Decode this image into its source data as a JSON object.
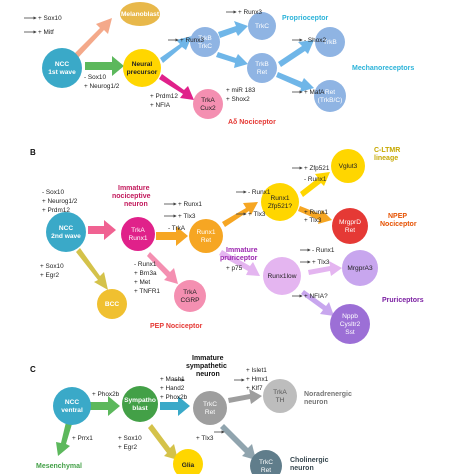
{
  "panels": {
    "b": "B",
    "c": "C"
  },
  "colors": {
    "ncc": "#3aa9c8",
    "green": "#5cb85c",
    "pink": "#f06292",
    "magenta": "#e0218a",
    "orange": "#f6a623",
    "yellow": "#ffd600",
    "red": "#e53935",
    "purple": "#9c6fd6",
    "blue_light": "#8fb4e3",
    "gray": "#cccccc",
    "cyan": "#2bb3d9",
    "sky": "#6fb6e8",
    "tan": "#c8a06a"
  },
  "panelA": {
    "nodes": {
      "ncc": [
        "NCC",
        "1st wave"
      ],
      "melanoblast": [
        "Melanoblast"
      ],
      "neural": [
        "Neural",
        "precursor"
      ],
      "trkb_trkc": [
        "TrkB",
        "TrkC"
      ],
      "trkc": [
        "TrkC"
      ],
      "trkb_ret": [
        "TrkB",
        "Ret"
      ],
      "trka_cux2": [
        "TrkA",
        "Cux2"
      ],
      "trkb": [
        "TrkB"
      ],
      "ret_trkbc": [
        "Ret",
        "(TrkB/C)"
      ]
    },
    "labels": {
      "sox10": "+ Sox10",
      "mitf": "+ Mitf",
      "minus_sox10": "- Sox10",
      "neurog": "+ Neurog1/2",
      "runx3_a": "+ Runx3",
      "runx3_b": "+ Runx3",
      "mir183": "+ miR 183",
      "shox2_a": "+ Shox2",
      "shox2_b": "- Shox2",
      "mafa": "+ MafA",
      "prdm12": "+ Prdm12",
      "nfia": "+ NFIA"
    },
    "captions": {
      "proprioceptor": "Proprioceptor",
      "mechanoreceptors": "Mechanoreceptors",
      "ad_nociceptor": "Aδ Nociceptor"
    }
  },
  "panelB": {
    "nodes": {
      "ncc2": [
        "NCC",
        "2nd wave"
      ],
      "trka_runx1": [
        "TrkA",
        "Runx1"
      ],
      "runx1_ret": [
        "Runx1",
        "Ret"
      ],
      "runx1_zfp": [
        "Runx1",
        "Zfp521?"
      ],
      "vglut3": [
        "Vglut3"
      ],
      "mrgprd": [
        "MrgprD",
        "Ret"
      ],
      "runx1low": [
        "Runx1low"
      ],
      "mrgpra3": [
        "MrgprA3"
      ],
      "nppb": [
        "Nppb",
        "Cysltr2",
        "Sst"
      ],
      "trka_cgrp": [
        "TrkA",
        "CGRP"
      ],
      "bcc": [
        "BCC"
      ]
    },
    "labels": {
      "sox10": "- Sox10",
      "neurog": "+ Neurog1/2",
      "prdm12": "+ Prdm12",
      "sox10p": "+ Sox10",
      "egr2": "+ Egr2",
      "runx1": "+ Runx1",
      "tlx3": "+ Tlx3",
      "trka": "- TrkA",
      "runx1b": "- Runx1",
      "brn3a": "+ Brn3a",
      "met": "+ Met",
      "tnfr1": "+ TNFR1",
      "p75": "+ p75",
      "runx1c": "- Runx1",
      "tlx3b": "+ Tlx3",
      "zfp521": "+ Zfp521",
      "runx1d": "- Runx1",
      "runx1e": "+ Runx1",
      "tlx3c": "+ Tlx3",
      "runx1f": "- Runx1",
      "tlx3d": "+ Tlx3",
      "nfia": "+ NFIA?"
    },
    "captions": {
      "immature_noci": [
        "Immature",
        "nociceptive",
        "neuron"
      ],
      "cltmr": [
        "C-LTMR",
        "lineage"
      ],
      "npep": [
        "NPEP",
        "Nociceptor"
      ],
      "immature_prur": [
        "Immature",
        "pruriceptor"
      ],
      "pruriceptors": "Pruriceptors",
      "pep": "PEP Nociceptor"
    }
  },
  "panelC": {
    "nodes": {
      "ncc_ventral": [
        "NCC",
        "ventral"
      ],
      "sympathoblast": [
        "Sympatho",
        "blast"
      ],
      "trkc_ret": [
        "TrkC",
        "Ret"
      ],
      "trka_th": [
        "TrkA",
        "TH"
      ],
      "glia": [
        "Glia"
      ],
      "trkc_ret2": [
        "TrkC",
        "Ret"
      ]
    },
    "labels": {
      "phox2b": "+ Phox2b",
      "mash1": "+ Mash1",
      "hand2": "+ Hand2",
      "phox2b2": "+ Phox2b",
      "islet1": "+ Islet1",
      "hmx1": "+ Hmx1",
      "klf7": "+ Klf7",
      "prrx1": "+ Prrx1",
      "sox10": "+ Sox10",
      "egr2": "+ Egr2",
      "tlx3": "+ Tlx3"
    },
    "captions": {
      "immature_symp": [
        "Immature",
        "sympathetic",
        "neuron"
      ],
      "noradrenergic": [
        "Noradrenergic",
        "neuron"
      ],
      "mesenchymal": "Mesenchymal",
      "cholinergic": [
        "Cholinergic",
        "neuron"
      ]
    }
  }
}
